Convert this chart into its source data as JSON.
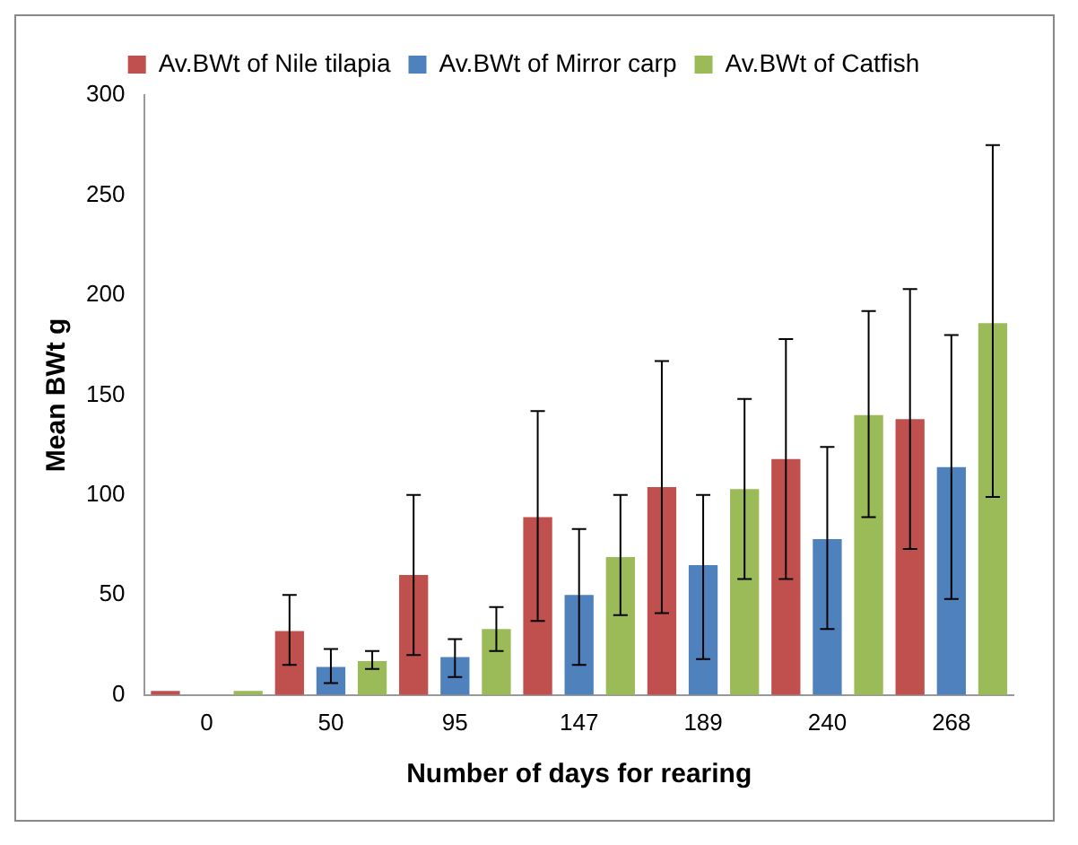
{
  "chart_data": {
    "type": "bar",
    "xlabel": "Number of days for rearing",
    "ylabel": "Mean BWt g",
    "categories": [
      "0",
      "50",
      "95",
      "147",
      "189",
      "240",
      "268"
    ],
    "ylim": [
      0,
      300
    ],
    "yticks": [
      0,
      50,
      100,
      150,
      200,
      250,
      300
    ],
    "grid": false,
    "legend": "top",
    "series": [
      {
        "name": "Av.BWt of Nile tilapia",
        "color": "#c0504d",
        "values": [
          2,
          32,
          60,
          89,
          104,
          118,
          138
        ],
        "errors": [
          null,
          [
            15,
            50
          ],
          [
            20,
            100
          ],
          [
            37,
            142
          ],
          [
            41,
            167
          ],
          [
            58,
            178
          ],
          [
            73,
            203
          ]
        ]
      },
      {
        "name": "Av.BWt of Mirror carp",
        "color": "#4f81bd",
        "values": [
          null,
          14,
          19,
          50,
          65,
          78,
          114
        ],
        "errors": [
          null,
          [
            6,
            23
          ],
          [
            9,
            28
          ],
          [
            15,
            83
          ],
          [
            18,
            100
          ],
          [
            33,
            124
          ],
          [
            48,
            180
          ]
        ]
      },
      {
        "name": "Av.BWt of Catfish",
        "color": "#9bbb59",
        "values": [
          2,
          17,
          33,
          69,
          103,
          140,
          186
        ],
        "errors": [
          null,
          [
            13,
            22
          ],
          [
            22,
            44
          ],
          [
            40,
            100
          ],
          [
            58,
            148
          ],
          [
            89,
            192
          ],
          [
            99,
            275
          ]
        ]
      }
    ]
  }
}
